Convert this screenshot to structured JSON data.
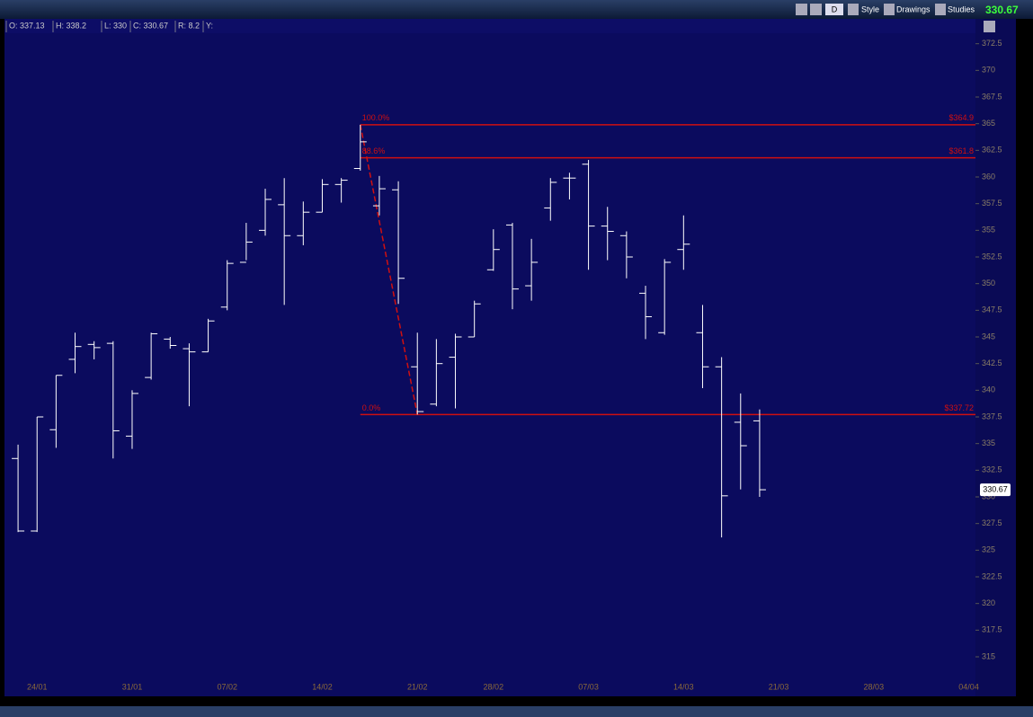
{
  "toolbar": {
    "buttons": [
      "D",
      "Style",
      "Drawings",
      "Studies"
    ],
    "last_price": "330.67"
  },
  "info_bar": {
    "items": [
      "O: 337.13",
      "H: 338.2",
      "L: 330",
      "C: 330.67",
      "R: 8.2",
      "Y:"
    ]
  },
  "chart_data": {
    "type": "ohlc",
    "color": "#ffffff",
    "categories": [
      null,
      "24/01",
      null,
      null,
      null,
      null,
      "31/01",
      null,
      null,
      null,
      null,
      "07/02",
      null,
      null,
      null,
      null,
      "14/02",
      null,
      null,
      null,
      null,
      "21/02",
      null,
      null,
      null,
      "28/02",
      null,
      null,
      null,
      null,
      "07/03",
      null,
      null,
      null,
      null,
      "14/03",
      null,
      null,
      null,
      null,
      "21/03",
      null,
      null,
      null,
      null,
      "28/03",
      null,
      null,
      null,
      null,
      "04/04"
    ],
    "open": [
      333.6,
      326.8,
      336.3,
      342.9,
      344.3,
      344.4,
      335.7,
      341.2,
      344.8,
      343.9,
      343.6,
      347.8,
      352.0,
      355.0,
      357.4,
      354.5,
      356.7,
      359.3,
      360.8,
      357.3,
      358.8,
      342.2,
      338.7,
      343.1,
      345.0,
      351.3,
      355.5,
      349.8,
      357.1,
      359.9,
      361.2,
      355.4,
      354.5,
      349.1,
      345.4,
      353.2,
      345.4,
      342.2,
      337.0,
      337.13,
      null,
      null,
      null,
      null,
      null,
      null,
      null,
      null,
      null,
      null,
      null
    ],
    "high": [
      334.9,
      337.5,
      341.4,
      345.4,
      344.6,
      344.6,
      340.0,
      345.4,
      345.0,
      344.4,
      346.7,
      352.2,
      355.7,
      358.9,
      359.9,
      357.7,
      359.8,
      359.9,
      364.9,
      360.1,
      359.6,
      345.4,
      344.8,
      345.3,
      348.4,
      355.1,
      355.7,
      354.2,
      359.9,
      360.4,
      361.6,
      357.2,
      354.9,
      349.8,
      352.3,
      356.4,
      348.0,
      343.1,
      339.7,
      338.2,
      null,
      null,
      null,
      null,
      null,
      null,
      null,
      null,
      null,
      null,
      null
    ],
    "low": [
      326.7,
      326.7,
      334.6,
      341.6,
      342.9,
      333.6,
      334.5,
      341.0,
      343.9,
      338.5,
      343.6,
      347.5,
      352.2,
      354.5,
      348.0,
      353.6,
      356.7,
      357.6,
      360.6,
      356.4,
      348.1,
      337.72,
      338.5,
      338.3,
      345.0,
      351.2,
      347.6,
      348.4,
      355.9,
      357.9,
      351.3,
      352.2,
      350.5,
      344.8,
      345.2,
      351.3,
      340.2,
      326.2,
      330.7,
      330.0,
      null,
      null,
      null,
      null,
      null,
      null,
      null,
      null,
      null,
      null,
      null
    ],
    "close": [
      326.8,
      337.5,
      341.4,
      344.1,
      344.0,
      336.2,
      339.7,
      345.3,
      344.2,
      343.6,
      346.5,
      351.9,
      353.9,
      357.9,
      354.5,
      356.7,
      359.3,
      359.7,
      363.3,
      358.9,
      350.5,
      338.0,
      342.5,
      345.0,
      348.1,
      353.2,
      349.5,
      352.0,
      359.5,
      359.9,
      355.4,
      354.9,
      352.5,
      346.9,
      352.0,
      353.7,
      342.2,
      330.1,
      334.8,
      330.67,
      null,
      null,
      null,
      null,
      null,
      null,
      null,
      null,
      null,
      null,
      null
    ],
    "ylim": [
      313.4,
      373.4
    ],
    "yticks": [
      315,
      317.5,
      320,
      322.5,
      325,
      327.5,
      330,
      332.5,
      335,
      337.5,
      340,
      342.5,
      345,
      347.5,
      350,
      352.5,
      355,
      357.5,
      360,
      362.5,
      365,
      367.5,
      370,
      372.5
    ],
    "price_tag": "330.67",
    "fib": {
      "color": "#d01010",
      "levels": [
        {
          "label": "100.0%",
          "value": 364.9,
          "price_label": "$364.9"
        },
        {
          "label": "88.6%",
          "value": 361.8,
          "price_label": "$361.8"
        },
        {
          "label": "0.0%",
          "value": 337.72,
          "price_label": "$337.72"
        }
      ]
    }
  }
}
